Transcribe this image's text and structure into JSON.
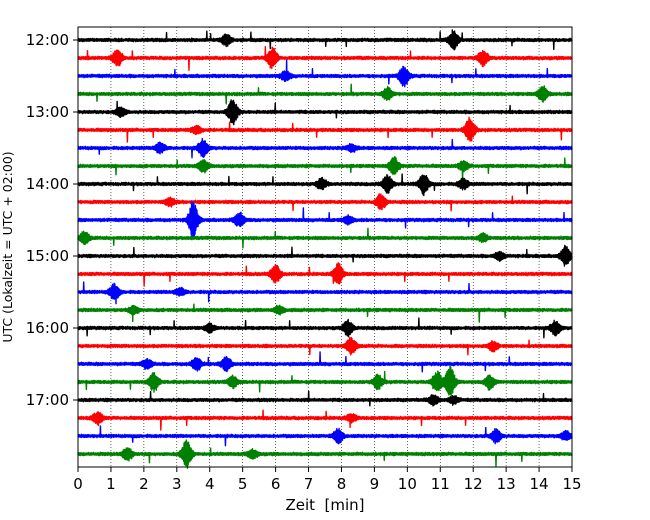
{
  "chart_data": {
    "type": "line",
    "title": "",
    "xlabel": "Zeit  [min]",
    "ylabel": "UTC (Lokalzeit = UTC + 02:00)",
    "xlim": [
      0,
      15
    ],
    "x_ticks": [
      "0",
      "1",
      "2",
      "3",
      "4",
      "5",
      "6",
      "7",
      "8",
      "9",
      "10",
      "11",
      "12",
      "13",
      "14",
      "15"
    ],
    "y_ticks": [
      "12:00",
      "13:00",
      "14:00",
      "15:00",
      "16:00",
      "17:00"
    ],
    "grid": true,
    "line_colors": [
      "#000000",
      "#ff0000",
      "#0000ff",
      "#008000"
    ],
    "traces": [
      {
        "start": "12:00",
        "color": "#000000",
        "events": [
          [
            4.5,
            0.7
          ],
          [
            11.4,
            1.2
          ]
        ]
      },
      {
        "start": "12:15",
        "color": "#ff0000",
        "events": [
          [
            1.2,
            1.1
          ],
          [
            5.9,
            1.3
          ],
          [
            12.3,
            1.0
          ]
        ]
      },
      {
        "start": "12:30",
        "color": "#0000ff",
        "events": [
          [
            6.3,
            0.6
          ],
          [
            9.9,
            1.3
          ]
        ]
      },
      {
        "start": "12:45",
        "color": "#008000",
        "events": [
          [
            9.4,
            0.8
          ],
          [
            14.1,
            1.0
          ]
        ]
      },
      {
        "start": "13:00",
        "color": "#000000",
        "events": [
          [
            4.7,
            1.6
          ],
          [
            1.3,
            0.6
          ]
        ]
      },
      {
        "start": "13:15",
        "color": "#ff0000",
        "events": [
          [
            11.9,
            1.6
          ],
          [
            3.6,
            0.5
          ]
        ]
      },
      {
        "start": "13:30",
        "color": "#0000ff",
        "events": [
          [
            3.8,
            1.1
          ],
          [
            2.5,
            0.7
          ],
          [
            8.3,
            0.5
          ]
        ]
      },
      {
        "start": "13:45",
        "color": "#008000",
        "events": [
          [
            3.8,
            0.8
          ],
          [
            9.6,
            1.1
          ],
          [
            11.7,
            0.6
          ]
        ]
      },
      {
        "start": "14:00",
        "color": "#000000",
        "events": [
          [
            7.4,
            0.7
          ],
          [
            9.4,
            1.1
          ],
          [
            10.5,
            1.3
          ],
          [
            11.7,
            0.7
          ]
        ]
      },
      {
        "start": "14:15",
        "color": "#ff0000",
        "events": [
          [
            9.2,
            1.0
          ],
          [
            2.8,
            0.5
          ]
        ]
      },
      {
        "start": "14:30",
        "color": "#0000ff",
        "events": [
          [
            3.5,
            2.2
          ],
          [
            4.9,
            0.9
          ],
          [
            8.2,
            0.5
          ]
        ]
      },
      {
        "start": "14:45",
        "color": "#008000",
        "events": [
          [
            0.2,
            0.8
          ],
          [
            12.3,
            0.5
          ]
        ]
      },
      {
        "start": "15:00",
        "color": "#000000",
        "events": [
          [
            14.8,
            1.2
          ],
          [
            12.8,
            0.5
          ]
        ]
      },
      {
        "start": "15:15",
        "color": "#ff0000",
        "events": [
          [
            6.0,
            1.1
          ],
          [
            7.9,
            1.3
          ]
        ]
      },
      {
        "start": "15:30",
        "color": "#0000ff",
        "events": [
          [
            1.1,
            1.0
          ],
          [
            3.1,
            0.5
          ]
        ]
      },
      {
        "start": "15:45",
        "color": "#008000",
        "events": [
          [
            1.7,
            0.5
          ],
          [
            6.1,
            0.5
          ]
        ]
      },
      {
        "start": "16:00",
        "color": "#000000",
        "events": [
          [
            8.2,
            1.0
          ],
          [
            4.0,
            0.5
          ],
          [
            14.5,
            0.9
          ]
        ]
      },
      {
        "start": "16:15",
        "color": "#ff0000",
        "events": [
          [
            8.3,
            1.1
          ],
          [
            12.6,
            0.6
          ]
        ]
      },
      {
        "start": "16:30",
        "color": "#0000ff",
        "events": [
          [
            3.6,
            0.8
          ],
          [
            4.5,
            0.9
          ],
          [
            2.1,
            0.6
          ]
        ]
      },
      {
        "start": "16:45",
        "color": "#008000",
        "events": [
          [
            2.3,
            1.2
          ],
          [
            10.9,
            1.4
          ],
          [
            11.3,
            1.9
          ],
          [
            12.5,
            0.9
          ],
          [
            9.1,
            0.9
          ],
          [
            4.7,
            0.7
          ]
        ]
      },
      {
        "start": "17:00",
        "color": "#000000",
        "events": [
          [
            10.8,
            0.6
          ],
          [
            11.4,
            0.5
          ]
        ]
      },
      {
        "start": "17:15",
        "color": "#ff0000",
        "events": [
          [
            0.6,
            0.8
          ],
          [
            8.3,
            0.5
          ]
        ]
      },
      {
        "start": "17:30",
        "color": "#0000ff",
        "events": [
          [
            7.9,
            0.9
          ],
          [
            12.7,
            0.9
          ],
          [
            14.8,
            0.6
          ]
        ]
      },
      {
        "start": "17:45",
        "color": "#008000",
        "events": [
          [
            3.3,
            1.8
          ],
          [
            1.5,
            0.9
          ],
          [
            5.3,
            0.6
          ]
        ]
      }
    ]
  }
}
